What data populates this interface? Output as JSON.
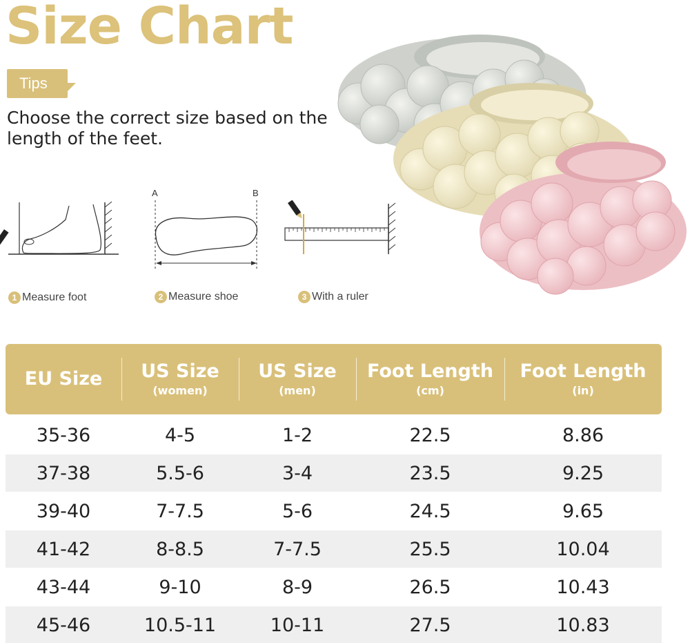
{
  "title": "Size Chart",
  "tips_label": "Tips",
  "instruction": "Choose the correct size based on the length of the feet.",
  "diagram_labels": {
    "a": "A",
    "b": "B"
  },
  "steps": [
    {
      "number": "1",
      "label": "Measure foot"
    },
    {
      "number": "2",
      "label": "Measure shoe"
    },
    {
      "number": "3",
      "label": "With a ruler"
    }
  ],
  "colors": {
    "accent": "#d9c07a",
    "title": "#dcc27a",
    "row_shade": "#efefef"
  },
  "table": {
    "headers": [
      {
        "main": "EU Size",
        "sub": ""
      },
      {
        "main": "US Size",
        "sub": "(women)"
      },
      {
        "main": "US Size",
        "sub": "(men)"
      },
      {
        "main": "Foot Length",
        "sub": "(cm)"
      },
      {
        "main": "Foot Length",
        "sub": "(in)"
      }
    ],
    "rows": [
      [
        "35-36",
        "4-5",
        "1-2",
        "22.5",
        "8.86"
      ],
      [
        "37-38",
        "5.5-6",
        "3-4",
        "23.5",
        "9.25"
      ],
      [
        "39-40",
        "7-7.5",
        "5-6",
        "24.5",
        "9.65"
      ],
      [
        "41-42",
        "8-8.5",
        "7-7.5",
        "25.5",
        "10.04"
      ],
      [
        "43-44",
        "9-10",
        "8-9",
        "26.5",
        "10.43"
      ],
      [
        "45-46",
        "10.5-11",
        "10-11",
        "27.5",
        "10.83"
      ]
    ]
  }
}
